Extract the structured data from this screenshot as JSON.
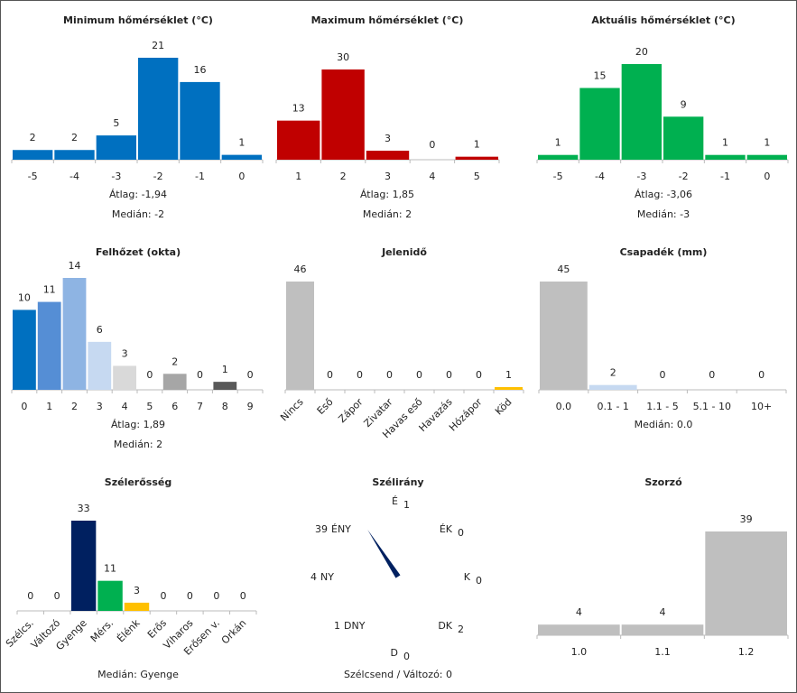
{
  "chart_data": [
    {
      "id": "min",
      "type": "bar",
      "title": "Minimum hőmérséklet (°C)",
      "categories": [
        "-5",
        "-4",
        "-3",
        "-2",
        "-1",
        "0"
      ],
      "values": [
        2,
        2,
        5,
        21,
        16,
        1
      ],
      "colors": [
        "#0070C0"
      ],
      "stats": [
        "Átlag: -1,94",
        "Medián: -2"
      ]
    },
    {
      "id": "max",
      "type": "bar",
      "title": "Maximum hőmérséklet (°C)",
      "categories": [
        "1",
        "2",
        "3",
        "4",
        "5"
      ],
      "values": [
        13,
        30,
        3,
        0,
        1
      ],
      "colors": [
        "#C00000"
      ],
      "stats": [
        "Átlag: 1,85",
        "Medián: 2"
      ]
    },
    {
      "id": "akt",
      "type": "bar",
      "title": "Aktuális hőmérséklet (°C)",
      "categories": [
        "-5",
        "-4",
        "-3",
        "-2",
        "-1",
        "0"
      ],
      "values": [
        1,
        15,
        20,
        9,
        1,
        1
      ],
      "colors": [
        "#00B050"
      ],
      "stats": [
        "Átlag: -3,06",
        "Medián: -3"
      ]
    },
    {
      "id": "felho",
      "type": "bar",
      "title": "Felhőzet (okta)",
      "categories": [
        "0",
        "1",
        "2",
        "3",
        "4",
        "5",
        "6",
        "7",
        "8",
        "9"
      ],
      "values": [
        10,
        11,
        14,
        6,
        3,
        0,
        2,
        0,
        1,
        0
      ],
      "colors": [
        "#0070C0",
        "#558ED5",
        "#8EB4E3",
        "#C6D9F1",
        "#D9D9D9",
        "#BFBFBF",
        "#A6A6A6",
        "#808080",
        "#595959",
        "#404040"
      ],
      "stats": [
        "Átlag: 1,89",
        "Medián: 2"
      ]
    },
    {
      "id": "jelen",
      "type": "bar",
      "title": "Jelenidő",
      "categories": [
        "Nincs",
        "Eső",
        "Zápor",
        "Zivatar",
        "Havas eső",
        "Havazás",
        "Hózápor",
        "Köd"
      ],
      "values": [
        46,
        0,
        0,
        0,
        0,
        0,
        0,
        1
      ],
      "colors": [
        "#BFBFBF",
        "#BFBFBF",
        "#BFBFBF",
        "#BFBFBF",
        "#BFBFBF",
        "#BFBFBF",
        "#BFBFBF",
        "#FFC000"
      ],
      "stats": []
    },
    {
      "id": "csap",
      "type": "bar",
      "title": "Csapadék (mm)",
      "categories": [
        "0.0",
        "0.1 - 1",
        "1.1 - 5",
        "5.1 - 10",
        "10+"
      ],
      "values": [
        45,
        2,
        0,
        0,
        0
      ],
      "colors": [
        "#BFBFBF",
        "#C6D9F1",
        "#8EB4E3",
        "#558ED5",
        "#0070C0"
      ],
      "stats": [
        "Medián: 0.0"
      ]
    },
    {
      "id": "szel",
      "type": "bar",
      "title": "Szélerősség",
      "categories": [
        "Szélcs.",
        "Változó",
        "Gyenge",
        "Mérs.",
        "Élénk",
        "Erős",
        "Viharos",
        "Erősen v.",
        "Orkán"
      ],
      "values": [
        0,
        0,
        33,
        11,
        3,
        0,
        0,
        0,
        0
      ],
      "colors": [
        "#BFBFBF",
        "#BFBFBF",
        "#002060",
        "#00B050",
        "#FFC000",
        "#FF0000",
        "#C00000",
        "#7030A0",
        "#000000"
      ],
      "stats": [
        "Medián: Gyenge"
      ]
    },
    {
      "id": "irany",
      "type": "wind-rose",
      "title": "Szélirány",
      "directions": [
        {
          "label": "É",
          "value": 1
        },
        {
          "label": "ÉK",
          "value": 0
        },
        {
          "label": "K",
          "value": 0
        },
        {
          "label": "DK",
          "value": 2
        },
        {
          "label": "D",
          "value": 0
        },
        {
          "label": "DNY",
          "value": 1
        },
        {
          "label": "NY",
          "value": 4
        },
        {
          "label": "ÉNY",
          "value": 39
        }
      ],
      "needle_color": "#002060",
      "stats": [
        "Szélcsend / Változó: 0"
      ]
    },
    {
      "id": "szorzo",
      "type": "bar",
      "title": "Szorzó",
      "categories": [
        "1.0",
        "1.1",
        "1.2"
      ],
      "values": [
        4,
        4,
        39
      ],
      "colors": [
        "#BFBFBF"
      ],
      "stats": []
    }
  ]
}
